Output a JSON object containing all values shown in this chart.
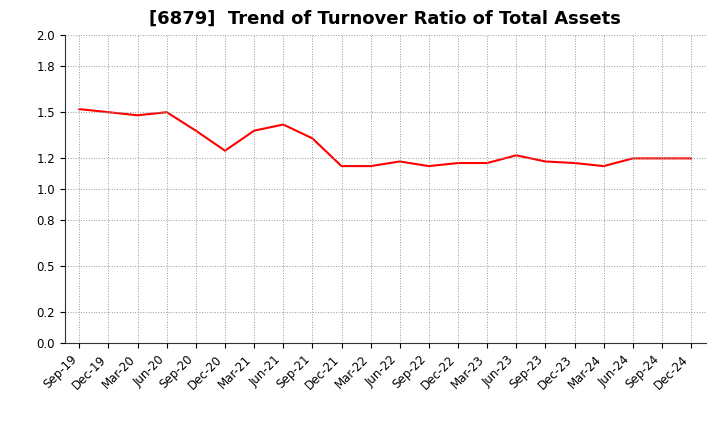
{
  "title": "[6879]  Trend of Turnover Ratio of Total Assets",
  "x_labels": [
    "Sep-19",
    "Dec-19",
    "Mar-20",
    "Jun-20",
    "Sep-20",
    "Dec-20",
    "Mar-21",
    "Jun-21",
    "Sep-21",
    "Dec-21",
    "Mar-22",
    "Jun-22",
    "Sep-22",
    "Dec-22",
    "Mar-23",
    "Jun-23",
    "Sep-23",
    "Dec-23",
    "Mar-24",
    "Jun-24",
    "Sep-24",
    "Dec-24"
  ],
  "y_values": [
    1.52,
    1.5,
    1.48,
    1.5,
    1.38,
    1.25,
    1.38,
    1.42,
    1.33,
    1.15,
    1.15,
    1.18,
    1.15,
    1.17,
    1.17,
    1.22,
    1.18,
    1.17,
    1.15,
    1.2,
    1.2,
    1.2
  ],
  "line_color": "#ff0000",
  "line_width": 1.5,
  "ylim": [
    0.0,
    2.0
  ],
  "yticks": [
    0.0,
    0.2,
    0.5,
    0.8,
    1.0,
    1.2,
    1.5,
    1.8,
    2.0
  ],
  "background_color": "#ffffff",
  "grid_color": "#999999",
  "title_fontsize": 13,
  "tick_fontsize": 8.5
}
